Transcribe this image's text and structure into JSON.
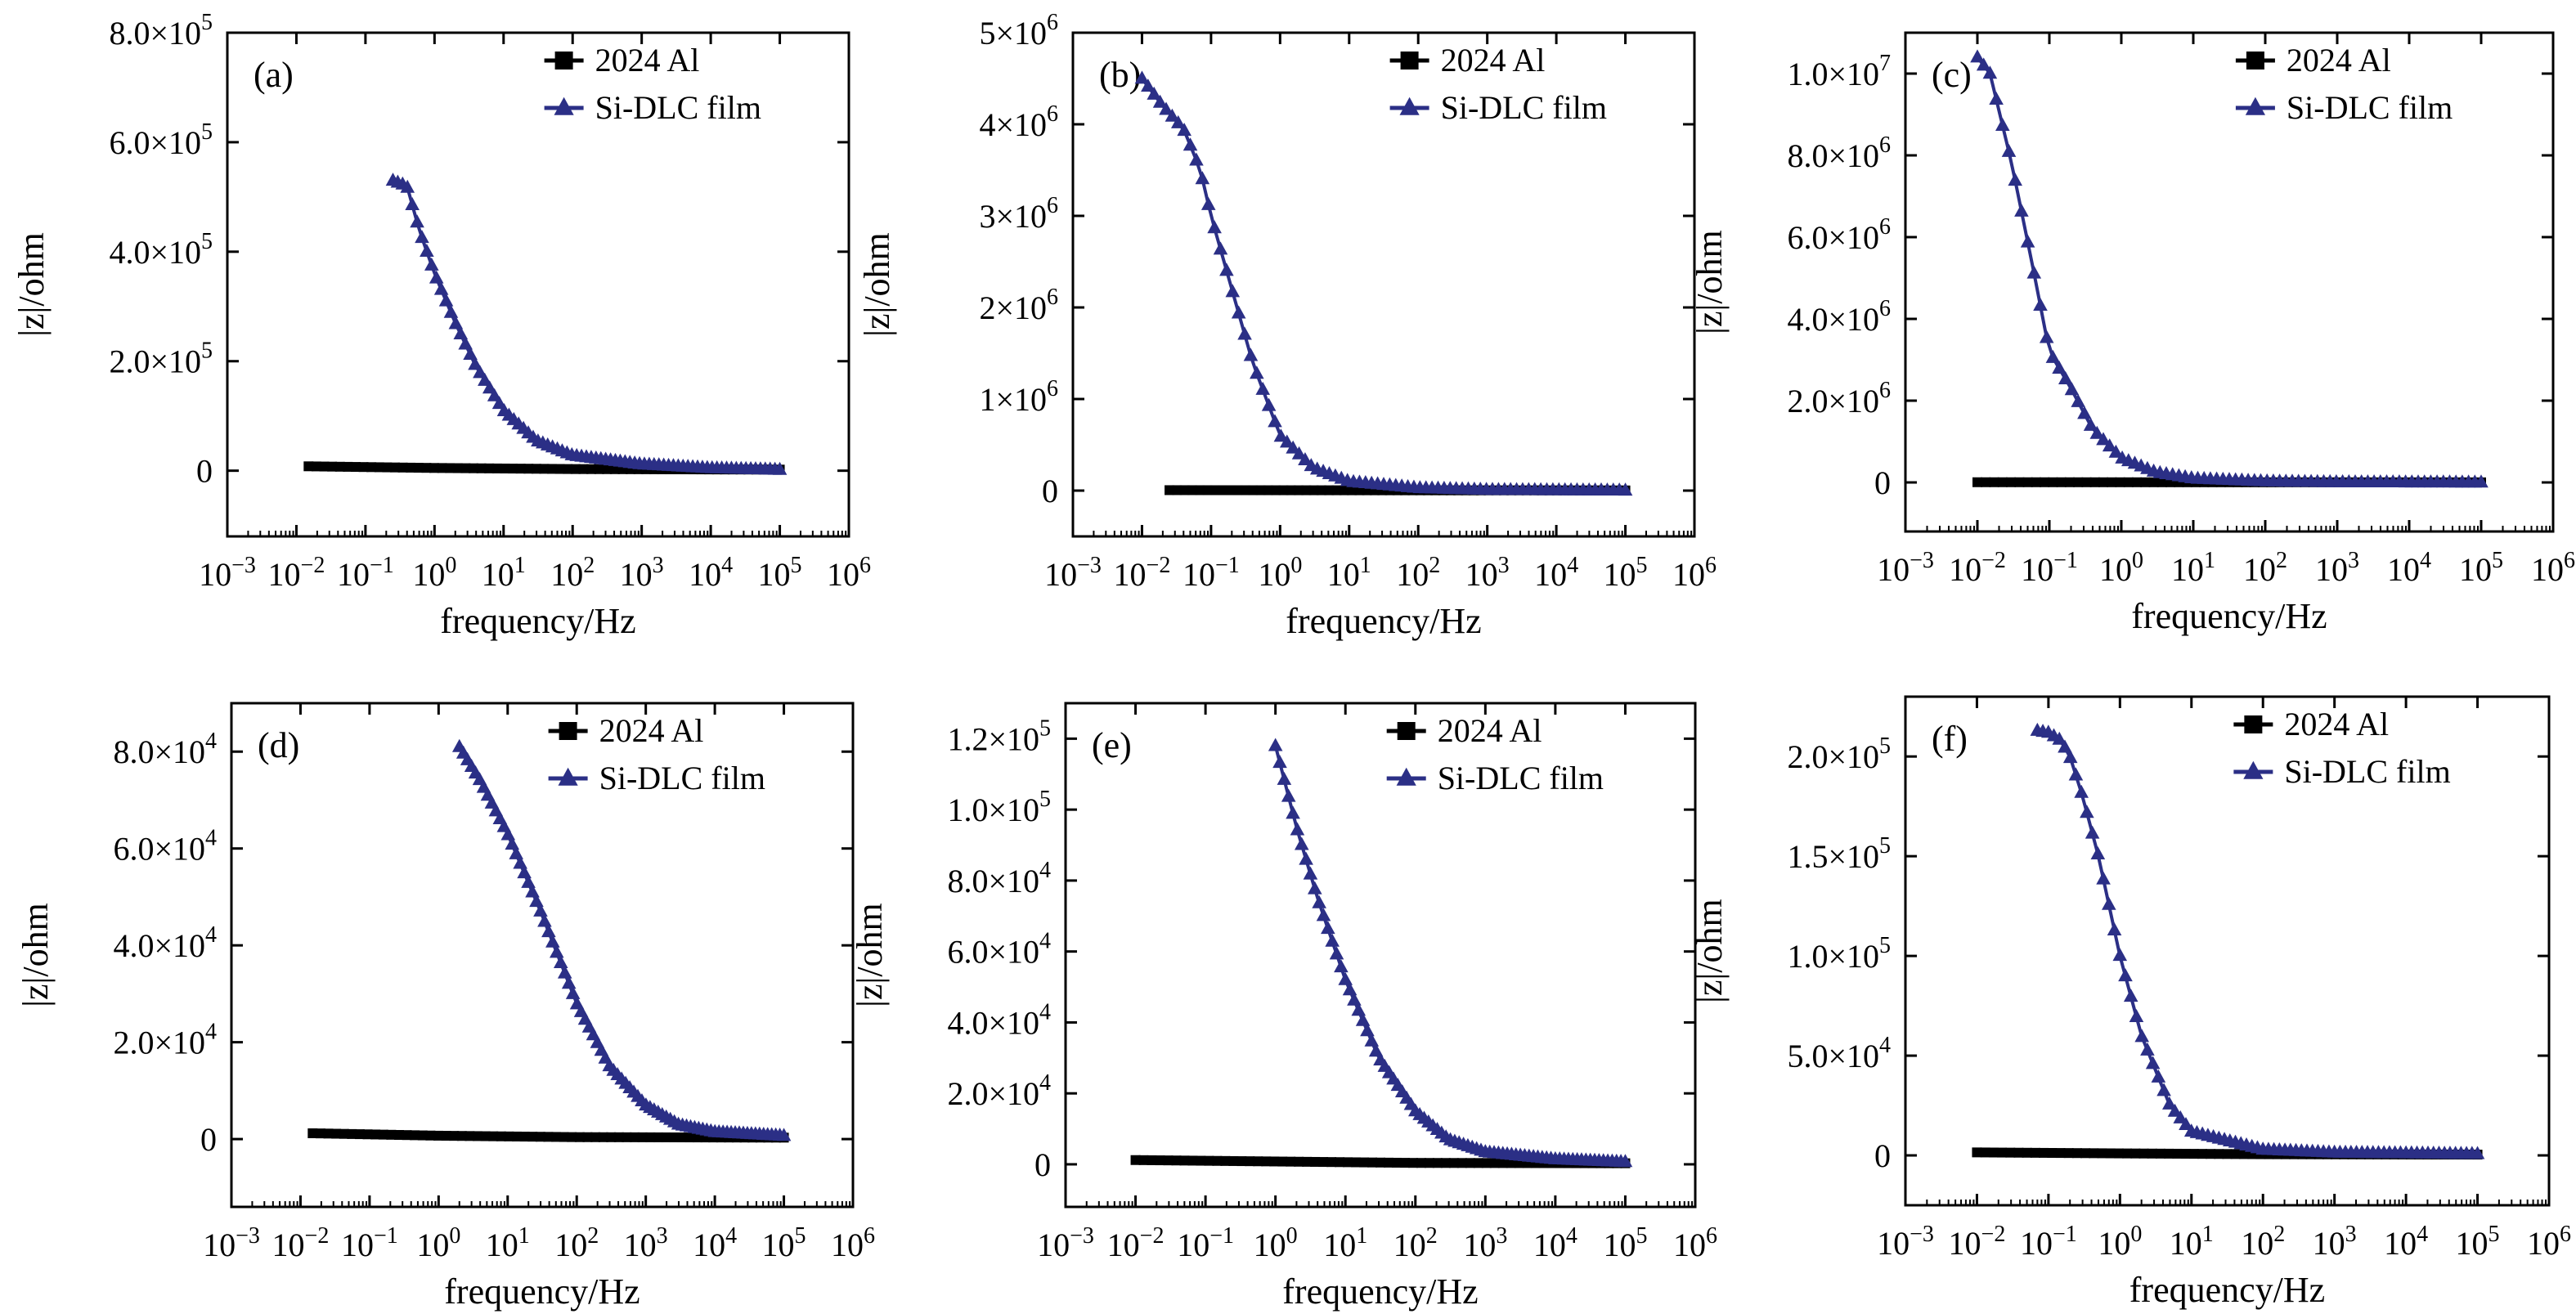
{
  "colors": {
    "al": "#000000",
    "dlc": "#2b2f86",
    "axis": "#000000"
  },
  "icons": {
    "al_marker": "square-marker",
    "dlc_marker": "triangle-marker"
  },
  "chart_data": [
    {
      "type": "line",
      "panel_label": "(a)",
      "xscale": "log",
      "xlabel": "frequency/Hz",
      "ylabel": "|z|/ohm",
      "xlim": [
        0.001,
        1000000
      ],
      "ylim": [
        -120000,
        800000
      ],
      "xticks": [
        {
          "v": 0.001,
          "base": "10",
          "exp": "−3"
        },
        {
          "v": 0.01,
          "base": "10",
          "exp": "−2"
        },
        {
          "v": 0.1,
          "base": "10",
          "exp": "−1"
        },
        {
          "v": 1,
          "base": "10",
          "exp": "0"
        },
        {
          "v": 10,
          "base": "10",
          "exp": "1"
        },
        {
          "v": 100,
          "base": "10",
          "exp": "2"
        },
        {
          "v": 1000,
          "base": "10",
          "exp": "3"
        },
        {
          "v": 10000,
          "base": "10",
          "exp": "4"
        },
        {
          "v": 100000,
          "base": "10",
          "exp": "5"
        },
        {
          "v": 1000000,
          "base": "10",
          "exp": "6"
        }
      ],
      "yticks": [
        {
          "v": 0,
          "base": "0",
          "exp": ""
        },
        {
          "v": 200000,
          "base": "2.0×10",
          "exp": "5"
        },
        {
          "v": 400000,
          "base": "4.0×10",
          "exp": "5"
        },
        {
          "v": 600000,
          "base": "6.0×10",
          "exp": "5"
        },
        {
          "v": 800000,
          "base": "8.0×10",
          "exp": "5"
        }
      ],
      "legend": {
        "placement": "top-right"
      },
      "series": [
        {
          "name": "2024 Al",
          "marker": "square",
          "color": "#000000",
          "start": 0.015,
          "end": 100000,
          "anchors": [
            [
              0.015,
              8000
            ],
            [
              1,
              5000
            ],
            [
              100,
              3000
            ],
            [
              100000,
              2000
            ]
          ]
        },
        {
          "name": "Si-DLC film",
          "marker": "triangle",
          "color": "#2b2f86",
          "start": 0.25,
          "end": 100000,
          "anchors": [
            [
              0.25,
              530000
            ],
            [
              0.4,
              520000
            ],
            [
              0.6,
              440000
            ],
            [
              1,
              360000
            ],
            [
              2,
              270000
            ],
            [
              4,
              190000
            ],
            [
              10,
              110000
            ],
            [
              30,
              55000
            ],
            [
              100,
              28000
            ],
            [
              1000,
              12000
            ],
            [
              10000,
              5000
            ],
            [
              100000,
              2000
            ]
          ]
        }
      ]
    },
    {
      "type": "line",
      "panel_label": "(b)",
      "xscale": "log",
      "xlabel": "frequency/Hz",
      "ylabel": "|z|/ohm",
      "xlim": [
        0.001,
        1000000
      ],
      "ylim": [
        -500000,
        5000000
      ],
      "xticks": [
        {
          "v": 0.001,
          "base": "10",
          "exp": "−3"
        },
        {
          "v": 0.01,
          "base": "10",
          "exp": "−2"
        },
        {
          "v": 0.1,
          "base": "10",
          "exp": "−1"
        },
        {
          "v": 1,
          "base": "10",
          "exp": "0"
        },
        {
          "v": 10,
          "base": "10",
          "exp": "1"
        },
        {
          "v": 100,
          "base": "10",
          "exp": "2"
        },
        {
          "v": 1000,
          "base": "10",
          "exp": "3"
        },
        {
          "v": 10000,
          "base": "10",
          "exp": "4"
        },
        {
          "v": 100000,
          "base": "10",
          "exp": "5"
        },
        {
          "v": 1000000,
          "base": "10",
          "exp": "6"
        }
      ],
      "yticks": [
        {
          "v": 0,
          "base": "0",
          "exp": ""
        },
        {
          "v": 1000000,
          "base": "1×10",
          "exp": "6"
        },
        {
          "v": 2000000,
          "base": "2×10",
          "exp": "6"
        },
        {
          "v": 3000000,
          "base": "3×10",
          "exp": "6"
        },
        {
          "v": 4000000,
          "base": "4×10",
          "exp": "6"
        },
        {
          "v": 5000000,
          "base": "5×10",
          "exp": "6"
        }
      ],
      "legend": {
        "placement": "top-right"
      },
      "series": [
        {
          "name": "2024 Al",
          "marker": "square",
          "color": "#000000",
          "start": 0.025,
          "end": 100000,
          "anchors": [
            [
              0.025,
              5000
            ],
            [
              1,
              4000
            ],
            [
              100000,
              2000
            ]
          ]
        },
        {
          "name": "Si-DLC film",
          "marker": "triangle",
          "color": "#2b2f86",
          "start": 0.01,
          "end": 100000,
          "anchors": [
            [
              0.01,
              4500000
            ],
            [
              0.02,
              4200000
            ],
            [
              0.04,
              3950000
            ],
            [
              0.07,
              3500000
            ],
            [
              0.1,
              3000000
            ],
            [
              0.2,
              2200000
            ],
            [
              0.4,
              1400000
            ],
            [
              1,
              600000
            ],
            [
              3,
              250000
            ],
            [
              10,
              100000
            ],
            [
              100,
              30000
            ],
            [
              1000,
              10000
            ],
            [
              100000,
              3000
            ]
          ]
        }
      ]
    },
    {
      "type": "line",
      "panel_label": "(c)",
      "xscale": "log",
      "xlabel": "frequency/Hz",
      "ylabel": "|z|/ohm",
      "xlim": [
        0.001,
        1000000
      ],
      "ylim": [
        -1200000,
        11000000
      ],
      "xticks": [
        {
          "v": 0.001,
          "base": "10",
          "exp": "−3"
        },
        {
          "v": 0.01,
          "base": "10",
          "exp": "−2"
        },
        {
          "v": 0.1,
          "base": "10",
          "exp": "−1"
        },
        {
          "v": 1,
          "base": "10",
          "exp": "0"
        },
        {
          "v": 10,
          "base": "10",
          "exp": "1"
        },
        {
          "v": 100,
          "base": "10",
          "exp": "2"
        },
        {
          "v": 1000,
          "base": "10",
          "exp": "3"
        },
        {
          "v": 10000,
          "base": "10",
          "exp": "4"
        },
        {
          "v": 100000,
          "base": "10",
          "exp": "5"
        },
        {
          "v": 1000000,
          "base": "10",
          "exp": "6"
        }
      ],
      "yticks": [
        {
          "v": 0,
          "base": "0",
          "exp": ""
        },
        {
          "v": 2000000,
          "base": "2.0×10",
          "exp": "6"
        },
        {
          "v": 4000000,
          "base": "4.0×10",
          "exp": "6"
        },
        {
          "v": 6000000,
          "base": "6.0×10",
          "exp": "6"
        },
        {
          "v": 8000000,
          "base": "8.0×10",
          "exp": "6"
        },
        {
          "v": 10000000,
          "base": "1.0×10",
          "exp": "7"
        }
      ],
      "legend": {
        "placement": "top-right"
      },
      "series": [
        {
          "name": "2024 Al",
          "marker": "square",
          "color": "#000000",
          "start": 0.01,
          "end": 100000,
          "anchors": [
            [
              0.01,
              5000
            ],
            [
              1,
              4000
            ],
            [
              100000,
              2000
            ]
          ]
        },
        {
          "name": "Si-DLC film",
          "marker": "triangle",
          "color": "#2b2f86",
          "start": 0.01,
          "end": 100000,
          "anchors": [
            [
              0.01,
              10400000
            ],
            [
              0.015,
              10000000
            ],
            [
              0.03,
              7800000
            ],
            [
              0.06,
              5200000
            ],
            [
              0.1,
              3200000
            ],
            [
              0.2,
              2300000
            ],
            [
              0.4,
              1300000
            ],
            [
              1,
              600000
            ],
            [
              3,
              250000
            ],
            [
              10,
              100000
            ],
            [
              100,
              30000
            ],
            [
              1000,
              10000
            ],
            [
              100000,
              3000
            ]
          ]
        }
      ]
    },
    {
      "type": "line",
      "panel_label": "(d)",
      "xscale": "log",
      "xlabel": "frequency/Hz",
      "ylabel": "|z|/ohm",
      "xlim": [
        0.001,
        1000000
      ],
      "ylim": [
        -14000,
        90000
      ],
      "xticks": [
        {
          "v": 0.001,
          "base": "10",
          "exp": "−3"
        },
        {
          "v": 0.01,
          "base": "10",
          "exp": "−2"
        },
        {
          "v": 0.1,
          "base": "10",
          "exp": "−1"
        },
        {
          "v": 1,
          "base": "10",
          "exp": "0"
        },
        {
          "v": 10,
          "base": "10",
          "exp": "1"
        },
        {
          "v": 100,
          "base": "10",
          "exp": "2"
        },
        {
          "v": 1000,
          "base": "10",
          "exp": "3"
        },
        {
          "v": 10000,
          "base": "10",
          "exp": "4"
        },
        {
          "v": 100000,
          "base": "10",
          "exp": "5"
        },
        {
          "v": 1000000,
          "base": "10",
          "exp": "6"
        }
      ],
      "yticks": [
        {
          "v": 0,
          "base": "0",
          "exp": ""
        },
        {
          "v": 20000,
          "base": "2.0×10",
          "exp": "4"
        },
        {
          "v": 40000,
          "base": "4.0×10",
          "exp": "4"
        },
        {
          "v": 60000,
          "base": "6.0×10",
          "exp": "4"
        },
        {
          "v": 80000,
          "base": "8.0×10",
          "exp": "4"
        }
      ],
      "legend": {
        "placement": "top-right"
      },
      "series": [
        {
          "name": "2024 Al",
          "marker": "square",
          "color": "#000000",
          "start": 0.015,
          "end": 100000,
          "anchors": [
            [
              0.015,
              1200
            ],
            [
              1,
              700
            ],
            [
              100,
              400
            ],
            [
              100000,
              300
            ]
          ]
        },
        {
          "name": "Si-DLC film",
          "marker": "triangle",
          "color": "#2b2f86",
          "start": 2,
          "end": 100000,
          "anchors": [
            [
              2,
              81000
            ],
            [
              4,
              74000
            ],
            [
              10,
              63000
            ],
            [
              30,
              47000
            ],
            [
              100,
              28000
            ],
            [
              300,
              15000
            ],
            [
              1000,
              7000
            ],
            [
              3000,
              3000
            ],
            [
              10000,
              1500
            ],
            [
              100000,
              700
            ]
          ]
        }
      ]
    },
    {
      "type": "line",
      "panel_label": "(e)",
      "xscale": "log",
      "xlabel": "frequency/Hz",
      "ylabel": "|z|/ohm",
      "xlim": [
        0.001,
        1000000
      ],
      "ylim": [
        -12000,
        130000
      ],
      "xticks": [
        {
          "v": 0.001,
          "base": "10",
          "exp": "−3"
        },
        {
          "v": 0.01,
          "base": "10",
          "exp": "−2"
        },
        {
          "v": 0.1,
          "base": "10",
          "exp": "−1"
        },
        {
          "v": 1,
          "base": "10",
          "exp": "0"
        },
        {
          "v": 10,
          "base": "10",
          "exp": "1"
        },
        {
          "v": 100,
          "base": "10",
          "exp": "2"
        },
        {
          "v": 1000,
          "base": "10",
          "exp": "3"
        },
        {
          "v": 10000,
          "base": "10",
          "exp": "4"
        },
        {
          "v": 100000,
          "base": "10",
          "exp": "5"
        },
        {
          "v": 1000000,
          "base": "10",
          "exp": "6"
        }
      ],
      "yticks": [
        {
          "v": 0,
          "base": "0",
          "exp": ""
        },
        {
          "v": 20000,
          "base": "2.0×10",
          "exp": "4"
        },
        {
          "v": 40000,
          "base": "4.0×10",
          "exp": "4"
        },
        {
          "v": 60000,
          "base": "6.0×10",
          "exp": "4"
        },
        {
          "v": 80000,
          "base": "8.0×10",
          "exp": "4"
        },
        {
          "v": 100000,
          "base": "1.0×10",
          "exp": "5"
        },
        {
          "v": 120000,
          "base": "1.2×10",
          "exp": "5"
        }
      ],
      "legend": {
        "placement": "top-right"
      },
      "series": [
        {
          "name": "2024 Al",
          "marker": "square",
          "color": "#000000",
          "start": 0.01,
          "end": 100000,
          "anchors": [
            [
              0.01,
              1200
            ],
            [
              1,
              800
            ],
            [
              100,
              400
            ],
            [
              100000,
              300
            ]
          ]
        },
        {
          "name": "Si-DLC film",
          "marker": "triangle",
          "color": "#2b2f86",
          "start": 1,
          "end": 100000,
          "anchors": [
            [
              1,
              118000
            ],
            [
              2,
              95000
            ],
            [
              4,
              75000
            ],
            [
              10,
              52000
            ],
            [
              30,
              30000
            ],
            [
              100,
              15000
            ],
            [
              300,
              7000
            ],
            [
              1000,
              3500
            ],
            [
              10000,
              1500
            ],
            [
              100000,
              700
            ]
          ]
        }
      ]
    },
    {
      "type": "line",
      "panel_label": "(f)",
      "xscale": "log",
      "xlabel": "frequency/Hz",
      "ylabel": "|z|/ohm",
      "xlim": [
        0.001,
        1000000
      ],
      "ylim": [
        -25000,
        230000
      ],
      "xticks": [
        {
          "v": 0.001,
          "base": "10",
          "exp": "−3"
        },
        {
          "v": 0.01,
          "base": "10",
          "exp": "−2"
        },
        {
          "v": 0.1,
          "base": "10",
          "exp": "−1"
        },
        {
          "v": 1,
          "base": "10",
          "exp": "0"
        },
        {
          "v": 10,
          "base": "10",
          "exp": "1"
        },
        {
          "v": 100,
          "base": "10",
          "exp": "2"
        },
        {
          "v": 1000,
          "base": "10",
          "exp": "3"
        },
        {
          "v": 10000,
          "base": "10",
          "exp": "4"
        },
        {
          "v": 100000,
          "base": "10",
          "exp": "5"
        },
        {
          "v": 1000000,
          "base": "10",
          "exp": "6"
        }
      ],
      "yticks": [
        {
          "v": 0,
          "base": "0",
          "exp": ""
        },
        {
          "v": 50000,
          "base": "5.0×10",
          "exp": "4"
        },
        {
          "v": 100000,
          "base": "1.0×10",
          "exp": "5"
        },
        {
          "v": 150000,
          "base": "1.5×10",
          "exp": "5"
        },
        {
          "v": 200000,
          "base": "2.0×10",
          "exp": "5"
        }
      ],
      "legend": {
        "placement": "top-right"
      },
      "series": [
        {
          "name": "2024 Al",
          "marker": "square",
          "color": "#000000",
          "start": 0.01,
          "end": 100000,
          "anchors": [
            [
              0.01,
              1500
            ],
            [
              1,
              1000
            ],
            [
              100,
              600
            ],
            [
              100000,
              400
            ]
          ]
        },
        {
          "name": "Si-DLC film",
          "marker": "triangle",
          "color": "#2b2f86",
          "start": 0.07,
          "end": 100000,
          "anchors": [
            [
              0.07,
              213000
            ],
            [
              0.1,
              212000
            ],
            [
              0.15,
              208000
            ],
            [
              0.2,
              200000
            ],
            [
              0.3,
              180000
            ],
            [
              0.5,
              150000
            ],
            [
              1,
              100000
            ],
            [
              2,
              60000
            ],
            [
              5,
              25000
            ],
            [
              10,
              12000
            ],
            [
              100,
              3000
            ],
            [
              1000,
              1500
            ],
            [
              100000,
              800
            ]
          ]
        }
      ]
    }
  ]
}
